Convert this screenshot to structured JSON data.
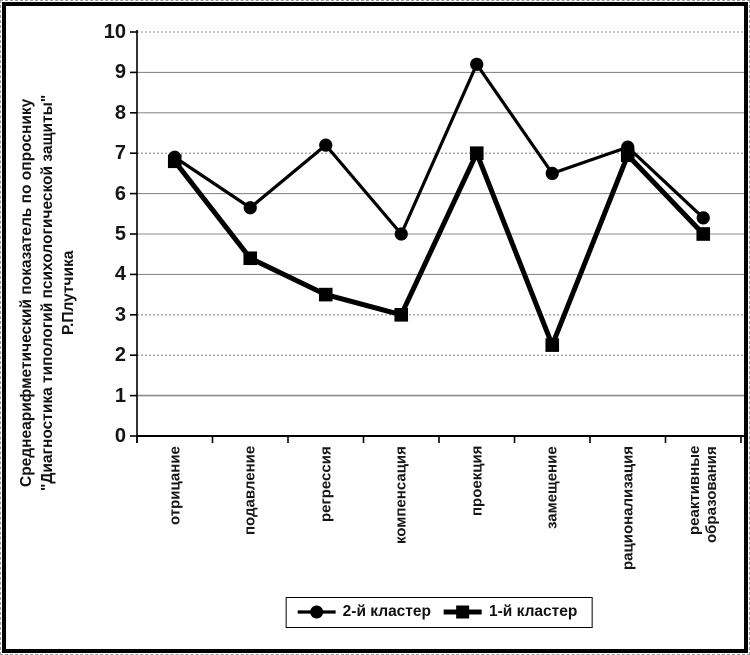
{
  "frame": {
    "background": "#ffffff",
    "border_color": "#000000",
    "grid_color": "#8c8c8c",
    "series_color": "#000000"
  },
  "chart_data": {
    "type": "line",
    "title": "",
    "ylabel_lines": [
      "Среднеарифметический показатель по опроснику",
      "\"Диагностика типологий психологической защиты\"",
      "Р.Плутчика"
    ],
    "xlabel": "",
    "categories": [
      "отрицание",
      "подавление",
      "регрессия",
      "компенсация",
      "проекция",
      "замещение",
      "рационализация",
      "реактивные образования"
    ],
    "series": [
      {
        "name": "2-й кластер",
        "marker": "circle",
        "line_width": 3.2,
        "values": [
          6.9,
          5.65,
          7.2,
          5.0,
          9.2,
          6.5,
          7.15,
          5.4
        ]
      },
      {
        "name": "1-й кластер",
        "marker": "square",
        "line_width": 5,
        "values": [
          6.8,
          4.4,
          3.5,
          3.0,
          7.0,
          2.25,
          6.95,
          5.0
        ]
      }
    ],
    "ylim": [
      0,
      10
    ],
    "yticks": [
      0,
      1,
      2,
      3,
      4,
      5,
      6,
      7,
      8,
      9,
      10
    ],
    "grid": true,
    "legend_position": "bottom-center"
  }
}
